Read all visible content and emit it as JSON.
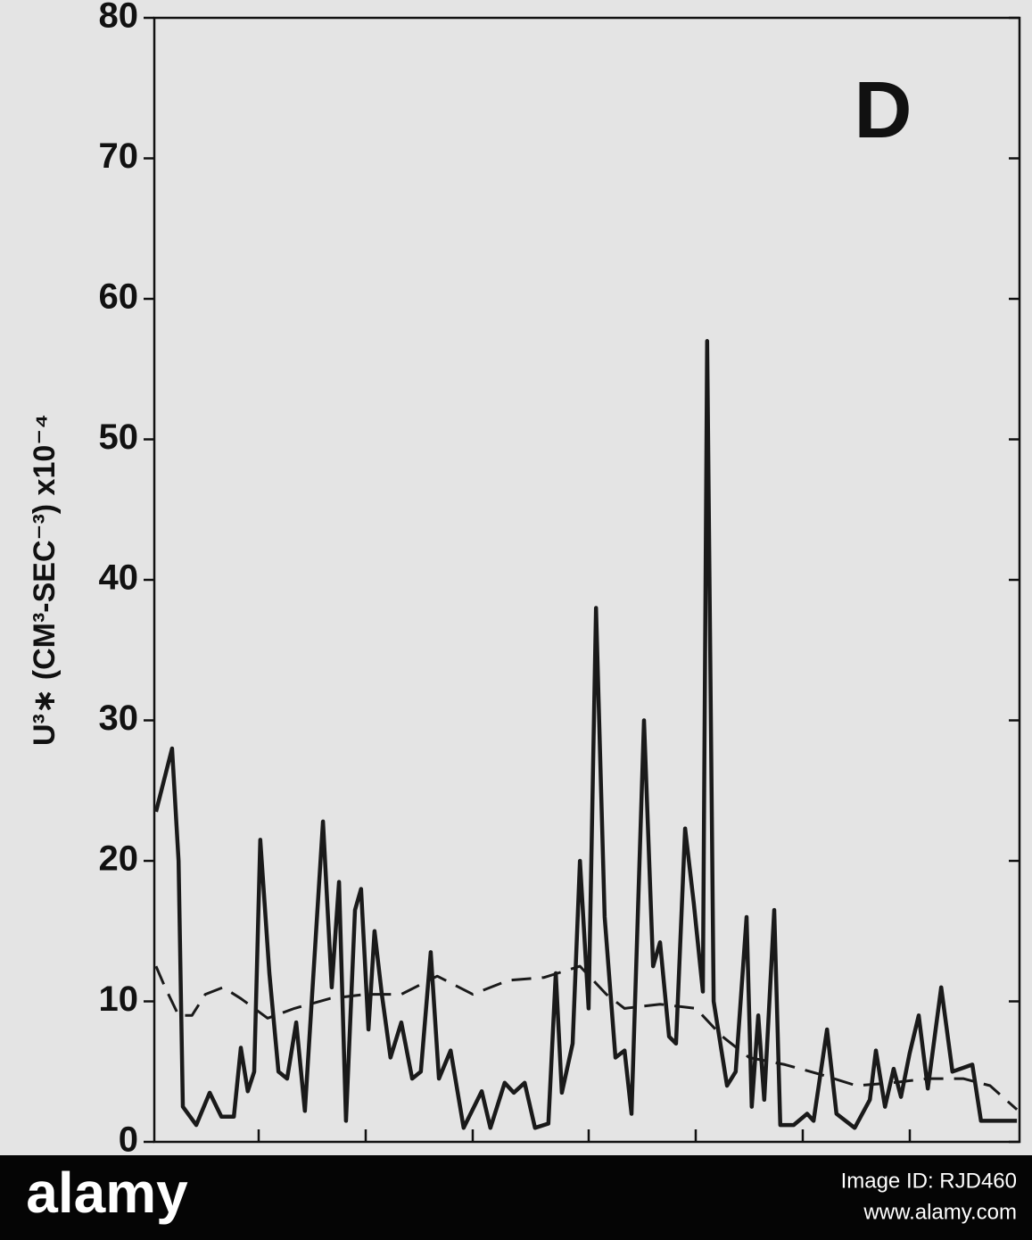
{
  "chart_data": {
    "type": "line",
    "annotation": "D",
    "y_label": "U³∗ (CM³-SEC⁻³) x10⁻⁴",
    "xlim": [
      0,
      20
    ],
    "ylim": [
      0,
      80
    ],
    "yticks": [
      0,
      10,
      20,
      30,
      40,
      50,
      60,
      70,
      80
    ],
    "series": [
      {
        "color": "#1a1a1a",
        "style": "solid",
        "x": [
          0.04,
          0.41,
          0.56,
          0.66,
          0.97,
          1.28,
          1.55,
          1.84,
          2.0,
          2.16,
          2.31,
          2.45,
          2.66,
          2.87,
          3.07,
          3.28,
          3.48,
          3.9,
          4.1,
          4.27,
          4.43,
          4.64,
          4.78,
          4.95,
          5.09,
          5.26,
          5.46,
          5.71,
          5.96,
          6.16,
          6.39,
          6.58,
          6.85,
          7.15,
          7.57,
          7.77,
          8.1,
          8.31,
          8.56,
          8.8,
          9.11,
          9.28,
          9.42,
          9.67,
          9.84,
          10.04,
          10.21,
          10.41,
          10.66,
          10.87,
          11.03,
          11.32,
          11.53,
          11.69,
          11.9,
          12.06,
          12.27,
          12.47,
          12.68,
          12.78,
          12.93,
          13.24,
          13.44,
          13.69,
          13.81,
          13.96,
          14.1,
          14.33,
          14.47,
          14.78,
          15.09,
          15.24,
          15.55,
          15.77,
          16.19,
          16.54,
          16.68,
          16.89,
          17.09,
          17.26,
          17.46,
          17.67,
          17.88,
          18.19,
          18.45,
          18.91,
          19.11,
          19.94
        ],
        "values": [
          23.5,
          28,
          20,
          2.5,
          1.2,
          3.5,
          1.8,
          1.8,
          6.7,
          3.6,
          5,
          21.5,
          12,
          5,
          4.5,
          8.5,
          2.2,
          22.8,
          11,
          18.5,
          1.5,
          16.5,
          18,
          8,
          15,
          10.5,
          6,
          8.5,
          4.5,
          5,
          13.5,
          4.5,
          6.5,
          1,
          3.6,
          1,
          4.2,
          3.5,
          4.2,
          1,
          1.3,
          12,
          3.5,
          7,
          20,
          9.5,
          38,
          16,
          6,
          6.5,
          2,
          30,
          12.5,
          14.2,
          7.5,
          7,
          22.3,
          17,
          10.7,
          57,
          10,
          4,
          5,
          16,
          2.5,
          9,
          3,
          16.5,
          1.2,
          1.2,
          2,
          1.5,
          8,
          2,
          1,
          3,
          6.5,
          2.5,
          5.2,
          3.2,
          6.3,
          9,
          3.8,
          11,
          5,
          5.5,
          1.5,
          1.5
        ]
      },
      {
        "color": "#1a1a1a",
        "style": "dashed",
        "x": [
          0.04,
          0.25,
          0.56,
          0.87,
          1.18,
          1.59,
          2.0,
          2.62,
          3.24,
          4.06,
          4.89,
          5.71,
          6.54,
          7.36,
          8.19,
          9.01,
          9.84,
          10.45,
          10.87,
          11.69,
          12.52,
          13.13,
          13.75,
          14.58,
          15.4,
          16.23,
          17.05,
          17.88,
          18.7,
          19.32,
          19.94
        ],
        "values": [
          12.5,
          11,
          9,
          9,
          10.5,
          11,
          10.2,
          8.8,
          9.5,
          10.2,
          10.5,
          10.5,
          11.8,
          10.5,
          11.5,
          11.7,
          12.5,
          10.5,
          9.5,
          9.8,
          9.5,
          7.5,
          6,
          5.5,
          4.8,
          4,
          4.2,
          4.5,
          4.5,
          4,
          2.3
        ]
      }
    ]
  },
  "watermark": {
    "brand": "alamy",
    "image_id": "Image ID: RJD460",
    "url": "www.alamy.com"
  }
}
